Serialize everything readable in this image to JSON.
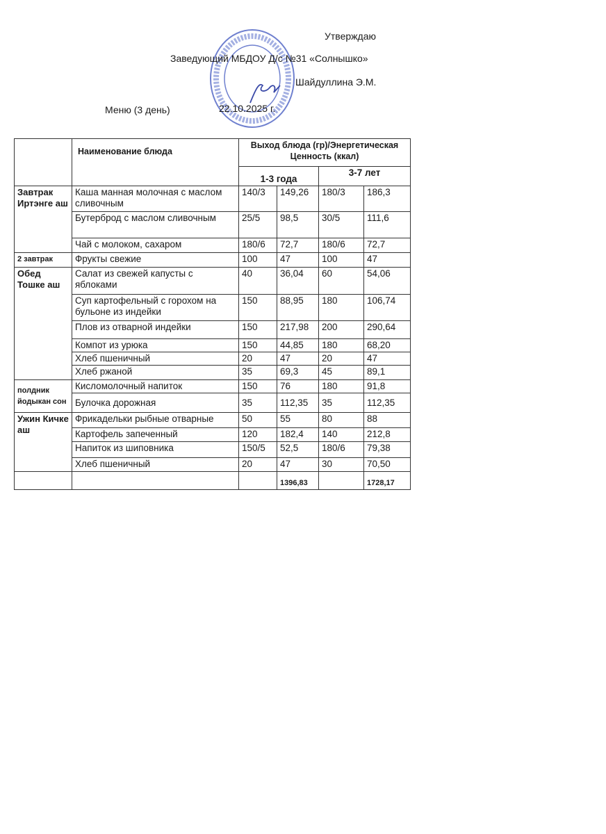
{
  "header": {
    "approve": "Утверждаю",
    "position": "Заведующий МБДОУ Д/с №31 «Солнышко»",
    "signer": "Шайдуллина Э.М.",
    "menu_title": "Меню (3 день)",
    "date": "22.10.2025 г."
  },
  "table": {
    "col_dish": "Наименование блюда",
    "col_output": "Выход блюда (гр)/Энергетическая Ценность (ккал)",
    "age1": "1-3 года",
    "age2": "3-7 лет",
    "meals": [
      {
        "name": "Завтрак Иртэнге аш",
        "rows": [
          {
            "dish": "Каша манная молочная с маслом сливочным",
            "w1": "140/3",
            "k1": "149,26",
            "w2": "180/3",
            "k2": "186,3"
          },
          {
            "dish": "Бутерброд с маслом сливочным",
            "w1": "25/5",
            "k1": "98,5",
            "w2": "30/5",
            "k2": "111,6"
          },
          {
            "dish": "Чай с молоком, сахаром",
            "w1": "180/6",
            "k1": "72,7",
            "w2": "180/6",
            "k2": "72,7"
          }
        ]
      },
      {
        "name": "2 завтрак",
        "rows": [
          {
            "dish": "Фрукты свежие",
            "w1": "100",
            "k1": "47",
            "w2": "100",
            "k2": "47"
          }
        ]
      },
      {
        "name": "Обед Тошке аш",
        "rows": [
          {
            "dish": "Салат из свежей капусты  с яблоками",
            "w1": "40",
            "k1": "36,04",
            "w2": "60",
            "k2": "54,06"
          },
          {
            "dish": "Суп картофельный с горохом на бульоне из  индейки",
            "w1": "150",
            "k1": "88,95",
            "w2": "180",
            "k2": "106,74"
          },
          {
            "dish": "Плов из отварной  индейки",
            "w1": "150",
            "k1": "217,98",
            "w2": "200",
            "k2": "290,64"
          },
          {
            "dish": "Компот из урюка",
            "w1": "150",
            "k1": "44,85",
            "w2": "180",
            "k2": "68,20"
          },
          {
            "dish": "Хлеб пшеничный",
            "w1": "20",
            "k1": "47",
            "w2": "20",
            "k2": "47"
          },
          {
            "dish": "Хлеб ржаной",
            "w1": "35",
            "k1": "69,3",
            "w2": "45",
            "k2": "89,1"
          }
        ]
      },
      {
        "name": "полдник йодыкан сон",
        "rows": [
          {
            "dish": "Кисломолочный напиток",
            "w1": "150",
            "k1": "76",
            "w2": "180",
            "k2": "91,8"
          },
          {
            "dish": "Булочка дорожная",
            "w1": "35",
            "k1": "112,35",
            "w2": "35",
            "k2": "112,35"
          }
        ]
      },
      {
        "name": "Ужин Кичке аш",
        "rows": [
          {
            "dish": "Фрикадельки рыбные отварные",
            "w1": "50",
            "k1": "55",
            "w2": "80",
            "k2": "88"
          },
          {
            "dish": "Картофель запеченный",
            "w1": "120",
            "k1": "182,4",
            "w2": "140",
            "k2": "212,8"
          },
          {
            "dish": "Напиток из шиповника",
            "w1": "150/5",
            "k1": "52,5",
            "w2": "180/6",
            "k2": "79,38"
          },
          {
            "dish": "Хлеб пшеничный",
            "w1": "20",
            "k1": "47",
            "w2": "30",
            "k2": "70,50"
          }
        ]
      }
    ],
    "total1": "1396,83",
    "total2": "1728,17"
  },
  "stamp_color": "#5a6fc8"
}
